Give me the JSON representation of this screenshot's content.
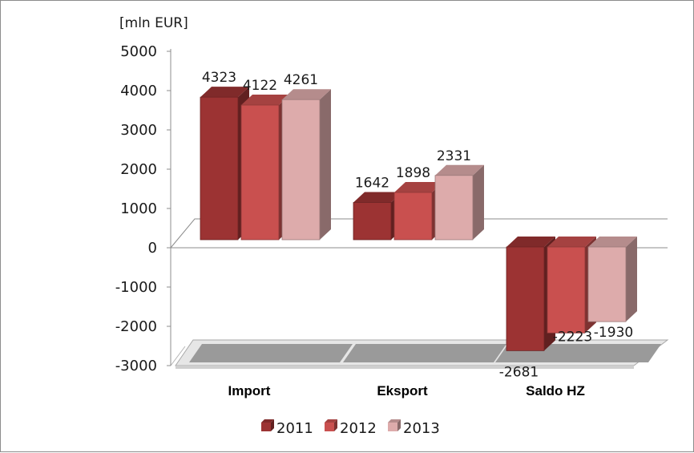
{
  "chart_data": {
    "type": "bar",
    "style": "3d-clustered-column",
    "unit_label": "[mln EUR]",
    "categories": [
      "Import",
      "Eksport",
      "Saldo HZ"
    ],
    "series": [
      {
        "name": "2011",
        "values": [
          4323,
          1642,
          -2681
        ],
        "color": "#9c3333"
      },
      {
        "name": "2012",
        "values": [
          4122,
          1898,
          -2223
        ],
        "color": "#c9504f"
      },
      {
        "name": "2013",
        "values": [
          4261,
          2331,
          -1930
        ],
        "color": "#ddabab"
      }
    ],
    "ylim": [
      -3000,
      5000
    ],
    "yticks": [
      5000,
      4000,
      3000,
      2000,
      1000,
      0,
      -1000,
      -2000,
      -3000
    ],
    "legend_position": "bottom"
  }
}
